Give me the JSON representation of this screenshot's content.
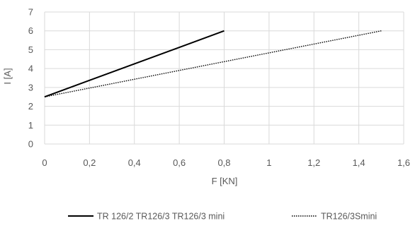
{
  "chart_data": {
    "type": "line",
    "xlabel": "F [KN]",
    "ylabel": "I [A]",
    "xlim": [
      0,
      1.6
    ],
    "ylim": [
      0,
      7
    ],
    "grid": true,
    "legend_position": "bottom",
    "x_ticks": [
      "0",
      "0,2",
      "0,4",
      "0,6",
      "0,8",
      "1",
      "1,2",
      "1,4",
      "1,6"
    ],
    "y_ticks": [
      "0",
      "1",
      "2",
      "3",
      "4",
      "5",
      "6",
      "7"
    ],
    "series": [
      {
        "name": "TR 126/2 TR126/3 TR126/3 mini",
        "style": "solid",
        "color": "#000000",
        "x": [
          0,
          0.8
        ],
        "y": [
          2.5,
          6
        ]
      },
      {
        "name": "TR126/3Smini",
        "style": "dotted",
        "color": "#000000",
        "x": [
          0,
          1.5
        ],
        "y": [
          2.5,
          6
        ]
      }
    ]
  }
}
